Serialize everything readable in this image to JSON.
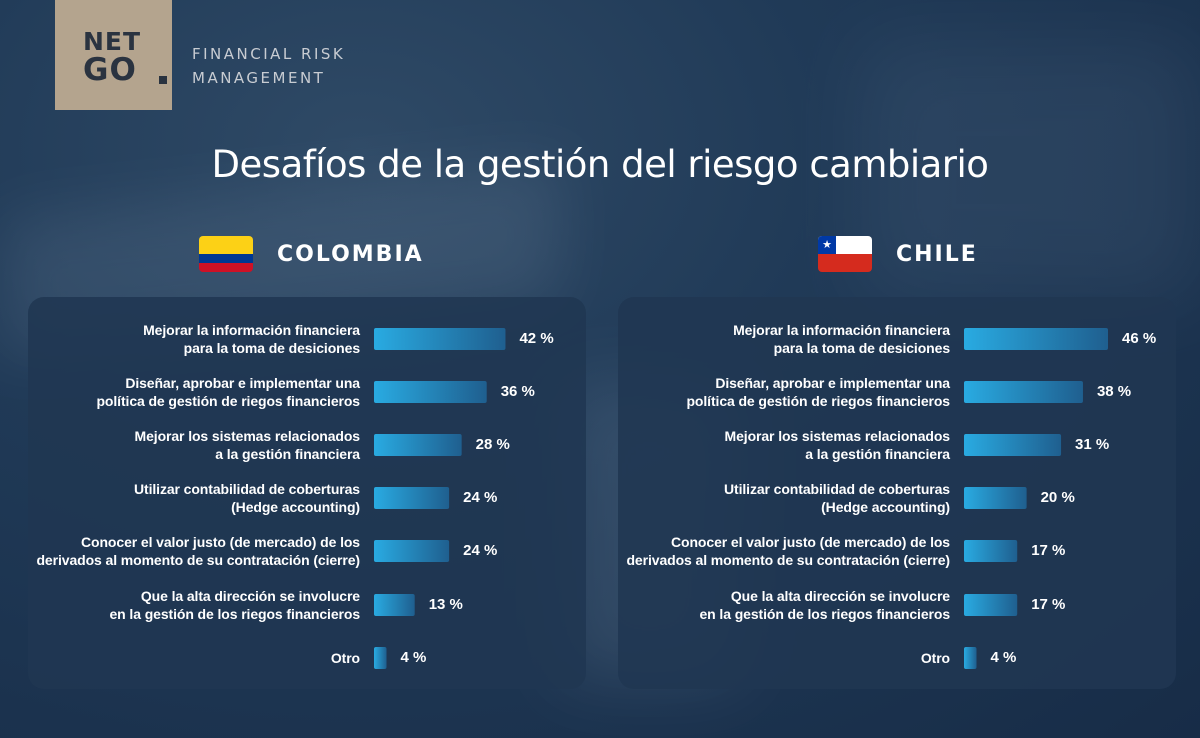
{
  "brand": {
    "logo_line1": "NET",
    "logo_line2": "GO",
    "tagline_line1": "FINANCIAL RISK",
    "tagline_line2": "MANAGEMENT",
    "logo_bg_color": "#b4a48e"
  },
  "title": "Desafíos de la gestión del riesgo cambiario",
  "colors": {
    "bar_start": "#29abe2",
    "bar_end": "#1f5f8f",
    "background": "#203a57",
    "panel": "#20374f"
  },
  "chart_data": [
    {
      "type": "bar",
      "orientation": "horizontal",
      "country": "COLOMBIA",
      "flag": "colombia-flag",
      "categories": [
        [
          "Mejorar la información financiera",
          "para la toma de desiciones"
        ],
        [
          "Diseñar, aprobar e implementar una",
          "política de gestión de riegos financieros"
        ],
        [
          "Mejorar los sistemas relacionados",
          "a la gestión financiera"
        ],
        [
          "Utilizar contabilidad de coberturas",
          "(Hedge accounting)"
        ],
        [
          "Conocer el valor justo (de mercado) de los",
          "derivados al momento de su contratación (cierre)"
        ],
        [
          "Que la alta dirección se involucre",
          "en la gestión de los riegos financieros"
        ],
        [
          "Otro"
        ]
      ],
      "values": [
        42,
        36,
        28,
        24,
        24,
        13,
        4
      ],
      "value_labels": [
        "42 %",
        "36 %",
        "28 %",
        "24 %",
        "24 %",
        "13 %",
        "4 %"
      ],
      "xlim": [
        0,
        46
      ],
      "grid": false,
      "unit": "%"
    },
    {
      "type": "bar",
      "orientation": "horizontal",
      "country": "CHILE",
      "flag": "chile-flag",
      "categories": [
        [
          "Mejorar la información financiera",
          "para la toma de desiciones"
        ],
        [
          "Diseñar, aprobar e implementar una",
          "política de gestión de riegos financieros"
        ],
        [
          "Mejorar los sistemas relacionados",
          "a la gestión financiera"
        ],
        [
          "Utilizar contabilidad de coberturas",
          "(Hedge accounting)"
        ],
        [
          "Conocer el valor justo (de mercado) de los",
          "derivados al momento de su contratación (cierre)"
        ],
        [
          "Que la alta dirección se involucre",
          "en la gestión de los riegos financieros"
        ],
        [
          "Otro"
        ]
      ],
      "values": [
        46,
        38,
        31,
        20,
        17,
        17,
        4
      ],
      "value_labels": [
        "46 %",
        "38 %",
        "31 %",
        "20 %",
        "17 %",
        "17 %",
        "4 %"
      ],
      "xlim": [
        0,
        46
      ],
      "grid": false,
      "unit": "%"
    }
  ]
}
